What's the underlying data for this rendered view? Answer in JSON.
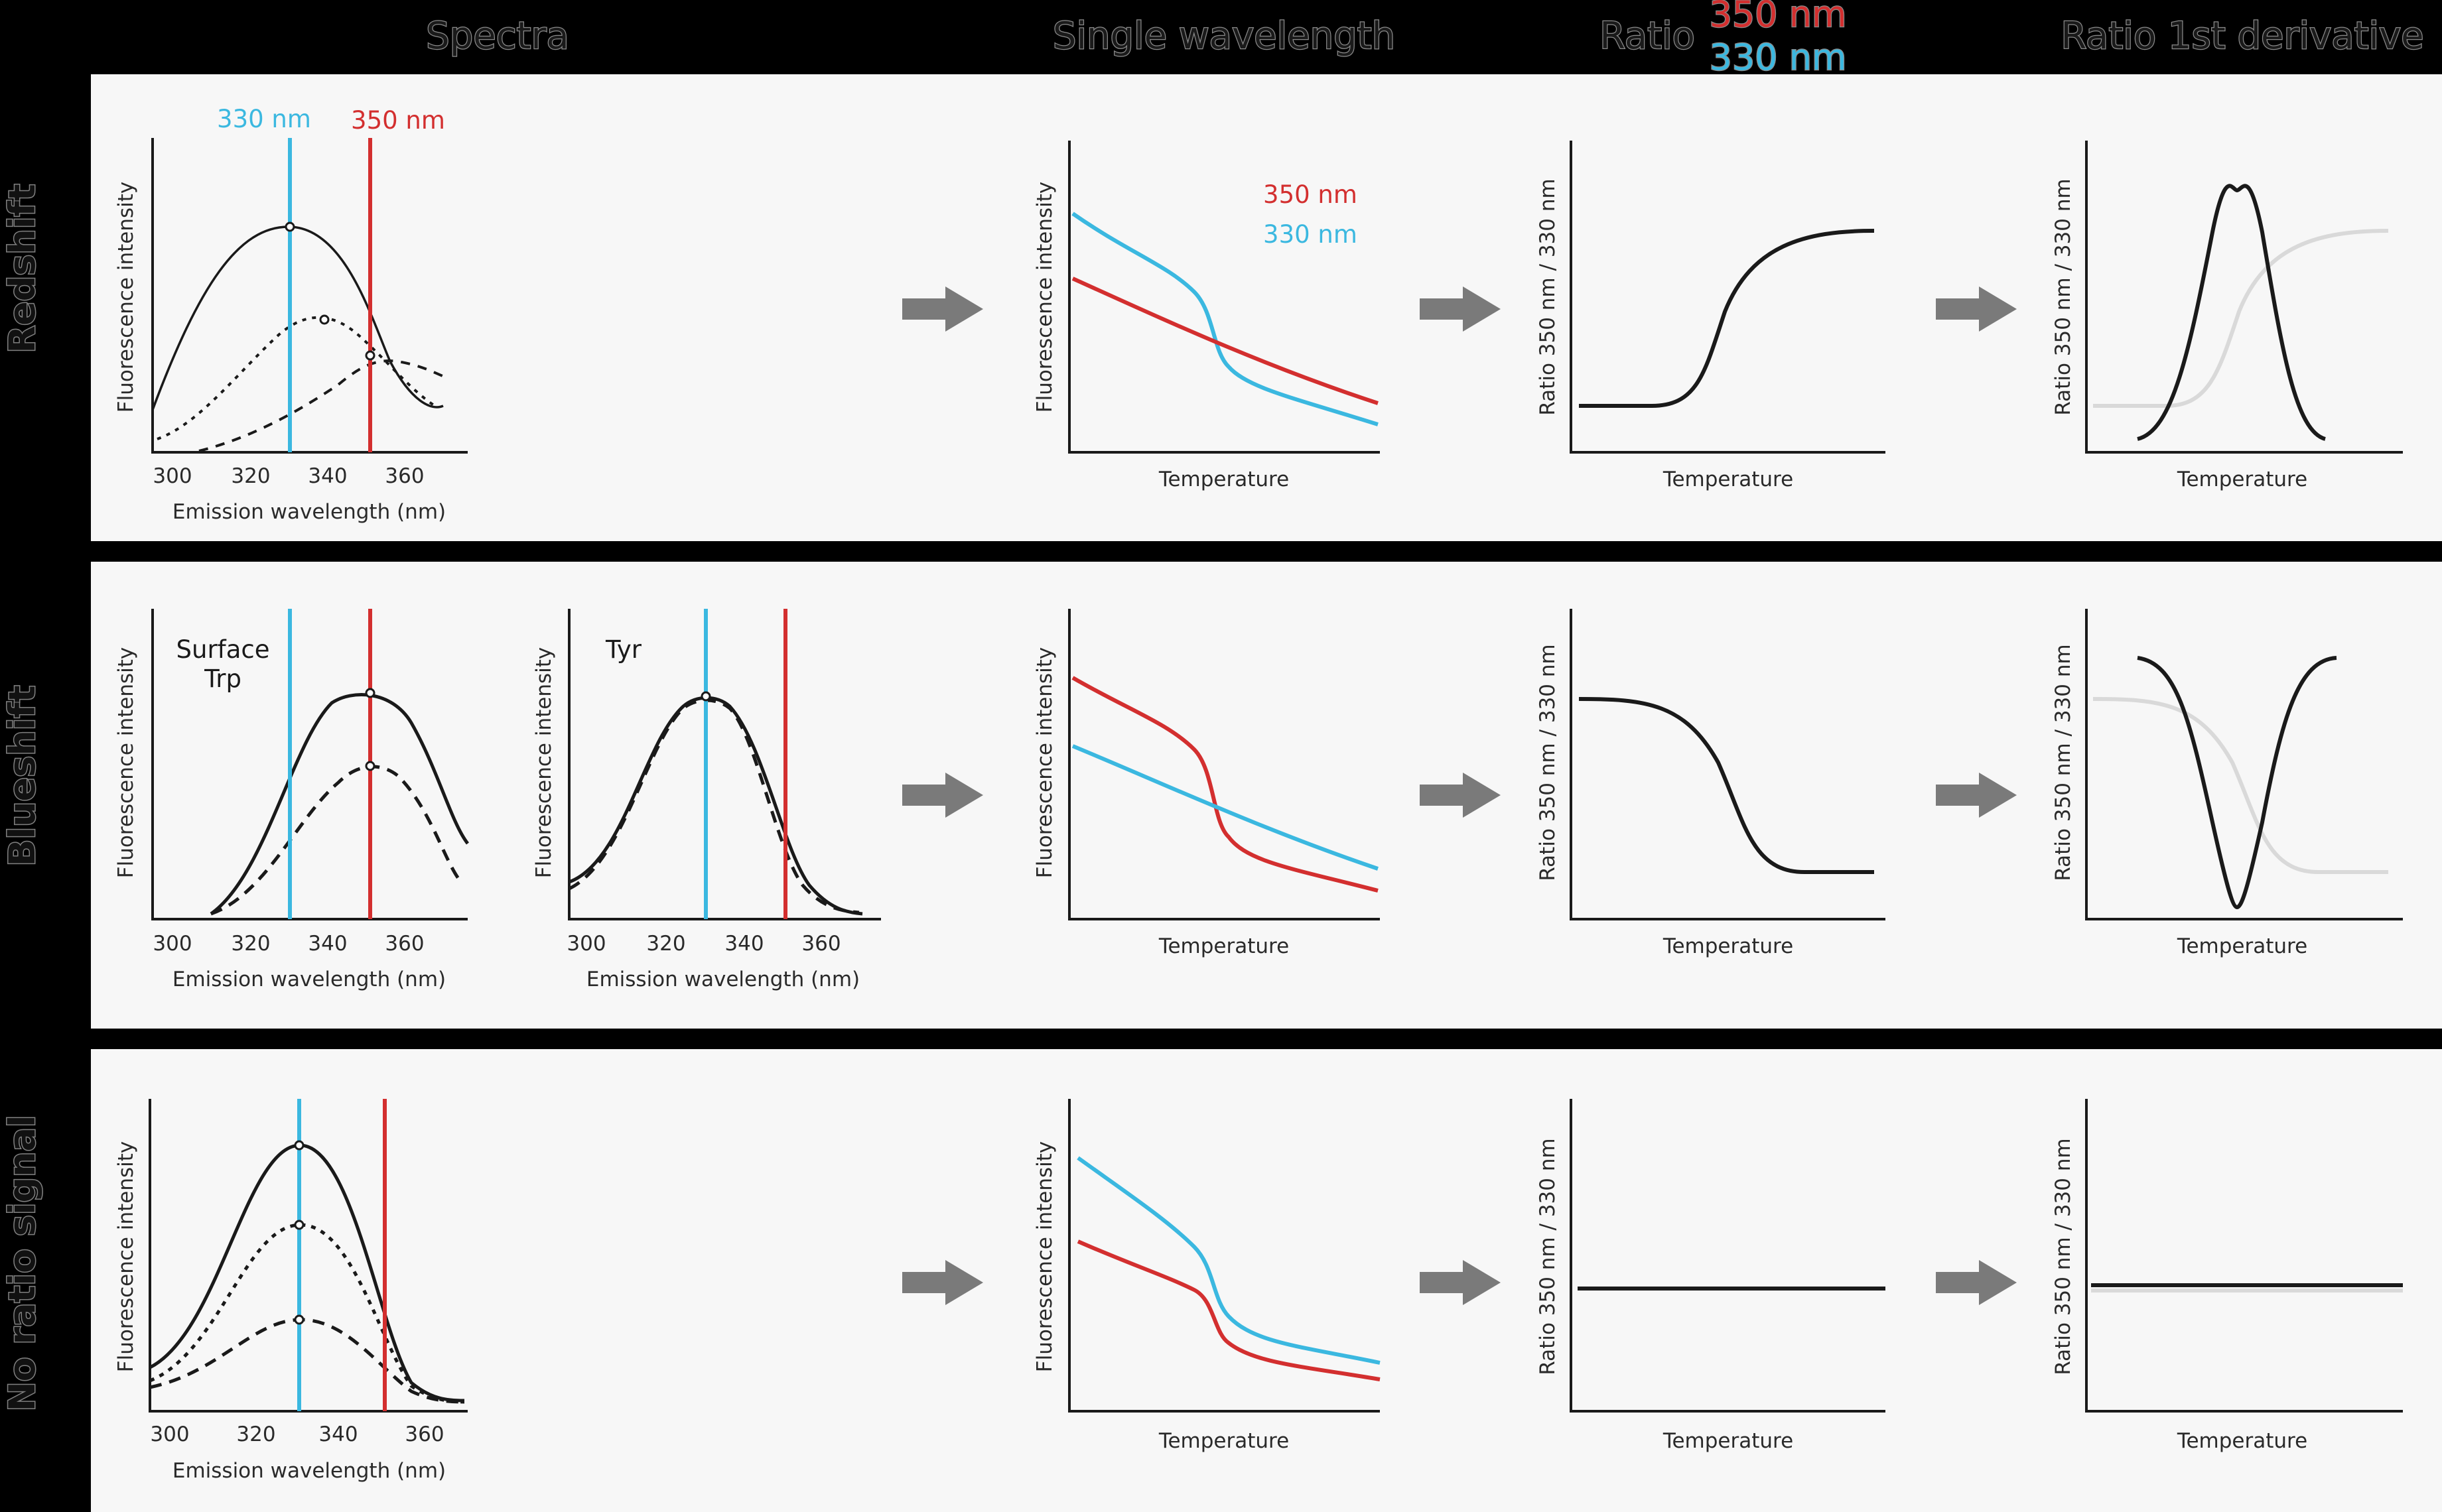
{
  "column_headers": {
    "spectra": "Spectra",
    "single": "Single wavelength",
    "ratio": "Ratio",
    "ratio_num": "350 nm",
    "ratio_den": "330 nm",
    "derivative": "Ratio 1st derivative"
  },
  "row_headers": {
    "redshift": "Redshift",
    "blueshift": "Blueshift",
    "none": "No ratio signal"
  },
  "labels": {
    "nm330": "330 nm",
    "nm350": "350 nm",
    "fluorescence": "Fluorescence intensity",
    "emission": "Emission wavelength (nm)",
    "temperature": "Temperature",
    "ratio_axis": "Ratio 350 nm / 330 nm",
    "surface": "Surface",
    "trp": "Trp",
    "tyr": "Tyr",
    "wavelength_ticks": [
      "300",
      "320",
      "340",
      "360"
    ]
  },
  "colors": {
    "red_350nm": "#d32f2f",
    "blue_330nm": "#3bb8e0",
    "curve": "#1a1a1a",
    "ratio_ghost": "#d9d9d9",
    "arrow": "#7a7a7a"
  },
  "rows": [
    {
      "id": "redshift",
      "spectra": [
        {
          "curves": [
            {
              "style": "solid",
              "peak_nm": 330,
              "sigma_nm": 15,
              "amplitude": 1.0
            },
            {
              "style": "dotted",
              "peak_nm": 338,
              "sigma_nm": 15,
              "amplitude": 0.63
            },
            {
              "style": "dashed",
              "peak_nm": 356,
              "sigma_nm": 15,
              "amplitude": 0.38
            }
          ]
        }
      ],
      "single_wavelength": {
        "legend": true,
        "curves": [
          "350 nm",
          "330 nm"
        ]
      },
      "ratio": "sigmoid rising",
      "derivative": "positive peak"
    },
    {
      "id": "blueshift",
      "spectra": [
        {
          "annotation": "Surface Trp",
          "curves": [
            {
              "style": "solid",
              "peak_nm": 350,
              "sigma_nm": 18,
              "amplitude": 1.0
            },
            {
              "style": "dashed",
              "peak_nm": 350,
              "sigma_nm": 18,
              "amplitude": 0.66
            }
          ]
        },
        {
          "annotation": "Tyr",
          "curves": [
            {
              "style": "solid",
              "peak_nm": 331,
              "sigma_nm": 19,
              "amplitude": 1.0
            },
            {
              "style": "dashed",
              "peak_nm": 331,
              "sigma_nm": 17,
              "amplitude": 0.98
            }
          ]
        }
      ],
      "single_wavelength": {
        "legend": false,
        "curves": [
          "350 nm",
          "330 nm"
        ]
      },
      "ratio": "sigmoid falling",
      "derivative": "negative peak"
    },
    {
      "id": "none",
      "spectra": [
        {
          "curves": [
            {
              "style": "solid",
              "peak_nm": 331,
              "sigma_nm": 13,
              "amplitude": 1.0
            },
            {
              "style": "dotted",
              "peak_nm": 331,
              "sigma_nm": 13,
              "amplitude": 0.74
            },
            {
              "style": "dashed",
              "peak_nm": 331,
              "sigma_nm": 13,
              "amplitude": 0.44
            }
          ]
        }
      ],
      "single_wavelength": {
        "legend": false,
        "curves": [
          "350 nm",
          "330 nm"
        ]
      },
      "ratio": "flat",
      "derivative": "flat"
    }
  ]
}
